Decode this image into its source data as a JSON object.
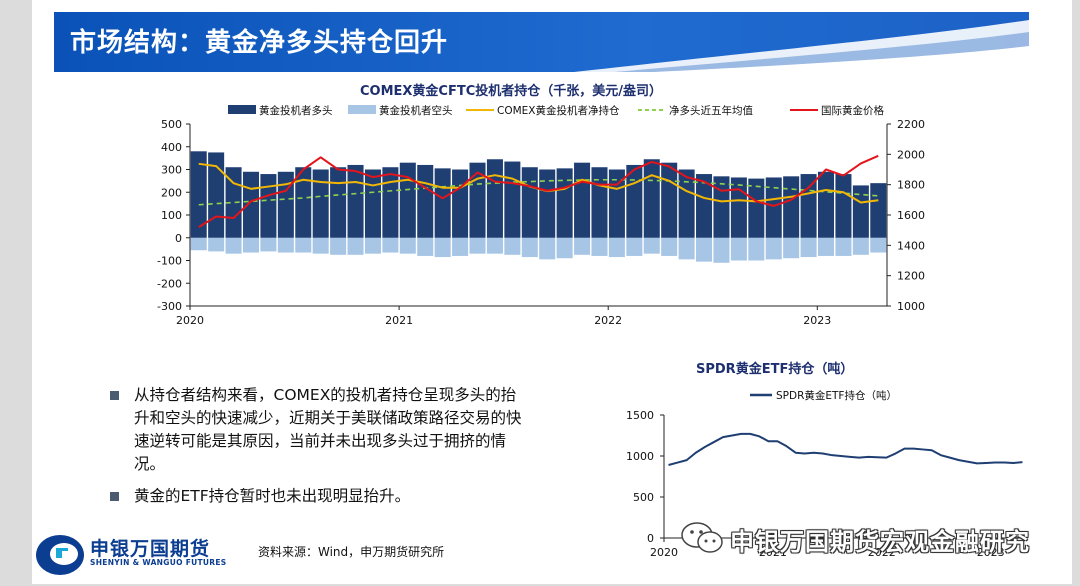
{
  "slide": {
    "title": "市场结构：黄金净多头持仓回升",
    "bullets": [
      "从持仓者结构来看，COMEX的投机者持仓呈现多头的抬升和空头的快速减少，近期关于美联储政策路径交易的快速逆转可能是其原因，当前并未出现多头过于拥挤的情况。",
      "黄金的ETF持仓暂时也未出现明显抬升。"
    ],
    "source": "资料来源：Wind，申万期货研究所",
    "logo": {
      "cn": "申银万国期货",
      "en": "SHENYIN & WANGUO FUTURES"
    },
    "watermark": "申银万国期货宏观金融研究"
  },
  "colors": {
    "title_bar": "#0a52b8",
    "long_bar": "#1f3f73",
    "short_bar": "#a7c6e6",
    "net_line": "#f2b705",
    "avg_line": "#8fd14f",
    "price_line": "#e3141a",
    "etf_line": "#1f3f73"
  },
  "chart_data": [
    {
      "type": "bar",
      "title": "COMEX黄金CFTC投机者持仓（千张，美元/盎司）",
      "x_ticks": [
        "2020",
        "2021",
        "2022",
        "2023"
      ],
      "x_range": [
        "2020-01",
        "2023-04"
      ],
      "y_left": {
        "range": [
          -300,
          500
        ],
        "ticks": [
          "500",
          "400",
          "300",
          "200",
          "100",
          "0",
          "-100",
          "-200",
          "-300"
        ]
      },
      "y_right": {
        "range": [
          1000,
          2200
        ],
        "ticks": [
          "2200",
          "2000",
          "1800",
          "1600",
          "1400",
          "1200",
          "1000"
        ]
      },
      "legend_position": "top",
      "x": [
        "2020-01",
        "2020-02",
        "2020-03",
        "2020-04",
        "2020-05",
        "2020-06",
        "2020-07",
        "2020-08",
        "2020-09",
        "2020-10",
        "2020-11",
        "2020-12",
        "2021-01",
        "2021-02",
        "2021-03",
        "2021-04",
        "2021-05",
        "2021-06",
        "2021-07",
        "2021-08",
        "2021-09",
        "2021-10",
        "2021-11",
        "2021-12",
        "2022-01",
        "2022-02",
        "2022-03",
        "2022-04",
        "2022-05",
        "2022-06",
        "2022-07",
        "2022-08",
        "2022-09",
        "2022-10",
        "2022-11",
        "2022-12",
        "2023-01",
        "2023-02",
        "2023-03",
        "2023-04"
      ],
      "series": [
        {
          "name": "黄金投机者多头",
          "kind": "bar",
          "axis": "left",
          "values": [
            380,
            375,
            310,
            290,
            280,
            290,
            310,
            300,
            310,
            320,
            300,
            310,
            330,
            320,
            305,
            300,
            330,
            345,
            335,
            310,
            300,
            305,
            330,
            310,
            300,
            320,
            345,
            330,
            300,
            280,
            270,
            265,
            260,
            265,
            270,
            280,
            290,
            280,
            230,
            240
          ]
        },
        {
          "name": "黄金投机者空头",
          "kind": "bar",
          "axis": "left",
          "values": [
            -55,
            -60,
            -70,
            -65,
            -60,
            -65,
            -65,
            -70,
            -75,
            -75,
            -70,
            -65,
            -70,
            -80,
            -85,
            -80,
            -70,
            -70,
            -75,
            -85,
            -95,
            -90,
            -75,
            -80,
            -85,
            -80,
            -70,
            -80,
            -95,
            -105,
            -110,
            -100,
            -100,
            -95,
            -90,
            -85,
            -80,
            -80,
            -75,
            -65
          ]
        },
        {
          "name": "COMEX黄金投机者净持仓",
          "kind": "line",
          "axis": "left",
          "values": [
            325,
            315,
            240,
            215,
            225,
            235,
            255,
            245,
            240,
            245,
            230,
            245,
            255,
            240,
            220,
            220,
            260,
            275,
            260,
            225,
            205,
            215,
            255,
            230,
            215,
            240,
            275,
            250,
            205,
            175,
            160,
            165,
            160,
            170,
            180,
            195,
            210,
            200,
            155,
            165
          ]
        },
        {
          "name": "净多头近五年均值",
          "kind": "line",
          "axis": "left",
          "dashed": true,
          "values": [
            145,
            150,
            155,
            160,
            165,
            170,
            175,
            182,
            188,
            194,
            200,
            206,
            212,
            218,
            224,
            230,
            236,
            240,
            244,
            247,
            250,
            252,
            254,
            255,
            255,
            254,
            252,
            250,
            246,
            242,
            237,
            232,
            226,
            220,
            214,
            208,
            202,
            196,
            190,
            184
          ]
        },
        {
          "name": "国际黄金价格",
          "kind": "line",
          "axis": "right",
          "values": [
            1520,
            1590,
            1580,
            1690,
            1730,
            1760,
            1900,
            1980,
            1900,
            1890,
            1850,
            1870,
            1850,
            1780,
            1710,
            1780,
            1880,
            1820,
            1810,
            1790,
            1760,
            1780,
            1820,
            1800,
            1800,
            1900,
            1950,
            1920,
            1850,
            1820,
            1760,
            1770,
            1690,
            1660,
            1700,
            1780,
            1900,
            1860,
            1940,
            1990
          ]
        }
      ]
    },
    {
      "type": "line",
      "title": "SPDR黄金ETF持仓（吨）",
      "x_ticks": [
        "2020",
        "2021",
        "2022",
        "2023"
      ],
      "x_range": [
        "2020-01",
        "2023-04"
      ],
      "y": {
        "range": [
          0,
          1500
        ],
        "ticks": [
          "1500",
          "1000",
          "500",
          "0"
        ]
      },
      "legend_position": "top",
      "x": [
        "2020-01",
        "2020-02",
        "2020-03",
        "2020-04",
        "2020-05",
        "2020-06",
        "2020-07",
        "2020-08",
        "2020-09",
        "2020-10",
        "2020-11",
        "2020-12",
        "2021-01",
        "2021-02",
        "2021-03",
        "2021-04",
        "2021-05",
        "2021-06",
        "2021-07",
        "2021-08",
        "2021-09",
        "2021-10",
        "2021-11",
        "2021-12",
        "2022-01",
        "2022-02",
        "2022-03",
        "2022-04",
        "2022-05",
        "2022-06",
        "2022-07",
        "2022-08",
        "2022-09",
        "2022-10",
        "2022-11",
        "2022-12",
        "2023-01",
        "2023-02",
        "2023-03",
        "2023-04"
      ],
      "series": [
        {
          "name": "SPDR黄金ETF持仓（吨）",
          "values": [
            890,
            920,
            950,
            1040,
            1110,
            1170,
            1230,
            1250,
            1270,
            1270,
            1240,
            1180,
            1180,
            1120,
            1040,
            1030,
            1040,
            1030,
            1010,
            1000,
            990,
            980,
            990,
            985,
            980,
            1030,
            1090,
            1090,
            1080,
            1070,
            1010,
            980,
            950,
            930,
            910,
            915,
            920,
            920,
            915,
            925
          ]
        }
      ]
    }
  ]
}
